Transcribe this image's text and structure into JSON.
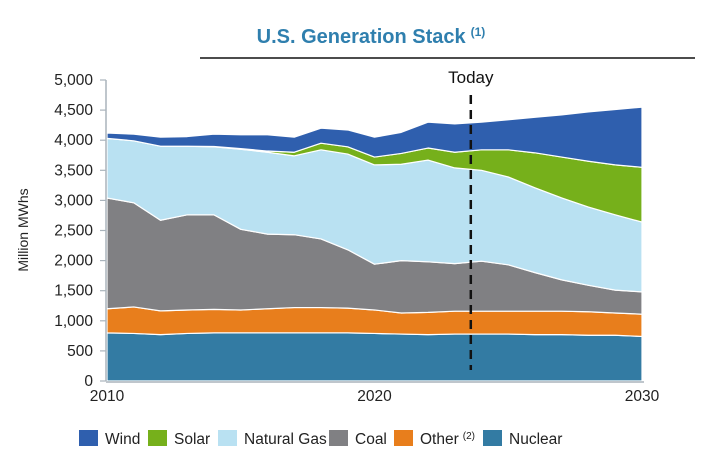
{
  "chart_data": {
    "type": "area",
    "stacked": true,
    "title": "U.S. Generation Stack",
    "title_footnote": "(1)",
    "ylabel": "Million MWhs",
    "xlabel": "",
    "xlim": [
      2010,
      2030
    ],
    "ylim": [
      0,
      5000
    ],
    "x_ticks": [
      2010,
      2020,
      2030
    ],
    "y_ticks": [
      0,
      500,
      1000,
      1500,
      2000,
      2500,
      3000,
      3500,
      4000,
      4500,
      5000
    ],
    "y_tick_labels": [
      "0",
      "500",
      "1,000",
      "1,500",
      "2,000",
      "2,500",
      "3,000",
      "3,500",
      "4,000",
      "4,500",
      "5,000"
    ],
    "grid": false,
    "legend_position": "bottom",
    "annotation": {
      "label": "Today",
      "x": 2023.6,
      "style": "dashed-vertical-line"
    },
    "x": [
      2010,
      2011,
      2012,
      2013,
      2014,
      2015,
      2016,
      2017,
      2018,
      2019,
      2020,
      2021,
      2022,
      2023,
      2024,
      2025,
      2026,
      2027,
      2028,
      2029,
      2030
    ],
    "series": [
      {
        "name": "Nuclear",
        "color": "#337ba3",
        "values": [
          800,
          790,
          770,
          790,
          800,
          800,
          800,
          800,
          800,
          800,
          790,
          780,
          770,
          780,
          780,
          780,
          770,
          770,
          760,
          760,
          740
        ]
      },
      {
        "name": "Other",
        "footnote": "(2)",
        "color": "#e87e1c",
        "values": [
          400,
          440,
          395,
          390,
          390,
          380,
          400,
          420,
          420,
          410,
          390,
          350,
          370,
          380,
          380,
          380,
          390,
          390,
          390,
          370,
          370
        ]
      },
      {
        "name": "Coal",
        "color": "#808083",
        "values": [
          1840,
          1730,
          1505,
          1580,
          1570,
          1340,
          1240,
          1210,
          1140,
          970,
          760,
          870,
          840,
          790,
          830,
          770,
          640,
          520,
          440,
          380,
          370
        ]
      },
      {
        "name": "Natural Gas",
        "color": "#b9e1f2",
        "values": [
          990,
          1030,
          1230,
          1140,
          1130,
          1330,
          1360,
          1310,
          1480,
          1590,
          1650,
          1600,
          1690,
          1590,
          1510,
          1460,
          1410,
          1360,
          1300,
          1250,
          1160
        ]
      },
      {
        "name": "Solar",
        "color": "#76b01b",
        "values": [
          0,
          0,
          0,
          0,
          5,
          10,
          20,
          60,
          110,
          120,
          130,
          180,
          200,
          260,
          340,
          450,
          580,
          680,
          760,
          830,
          910
        ]
      },
      {
        "name": "Wind",
        "color": "#2f5fae",
        "values": [
          90,
          110,
          150,
          160,
          205,
          230,
          270,
          250,
          250,
          280,
          330,
          350,
          430,
          470,
          460,
          500,
          590,
          700,
          820,
          920,
          1000
        ]
      }
    ],
    "legend_order": [
      "Wind",
      "Solar",
      "Natural Gas",
      "Coal",
      "Other",
      "Nuclear"
    ]
  },
  "colors": {
    "title": "#2f7fae",
    "axis": "#aab4bc"
  }
}
